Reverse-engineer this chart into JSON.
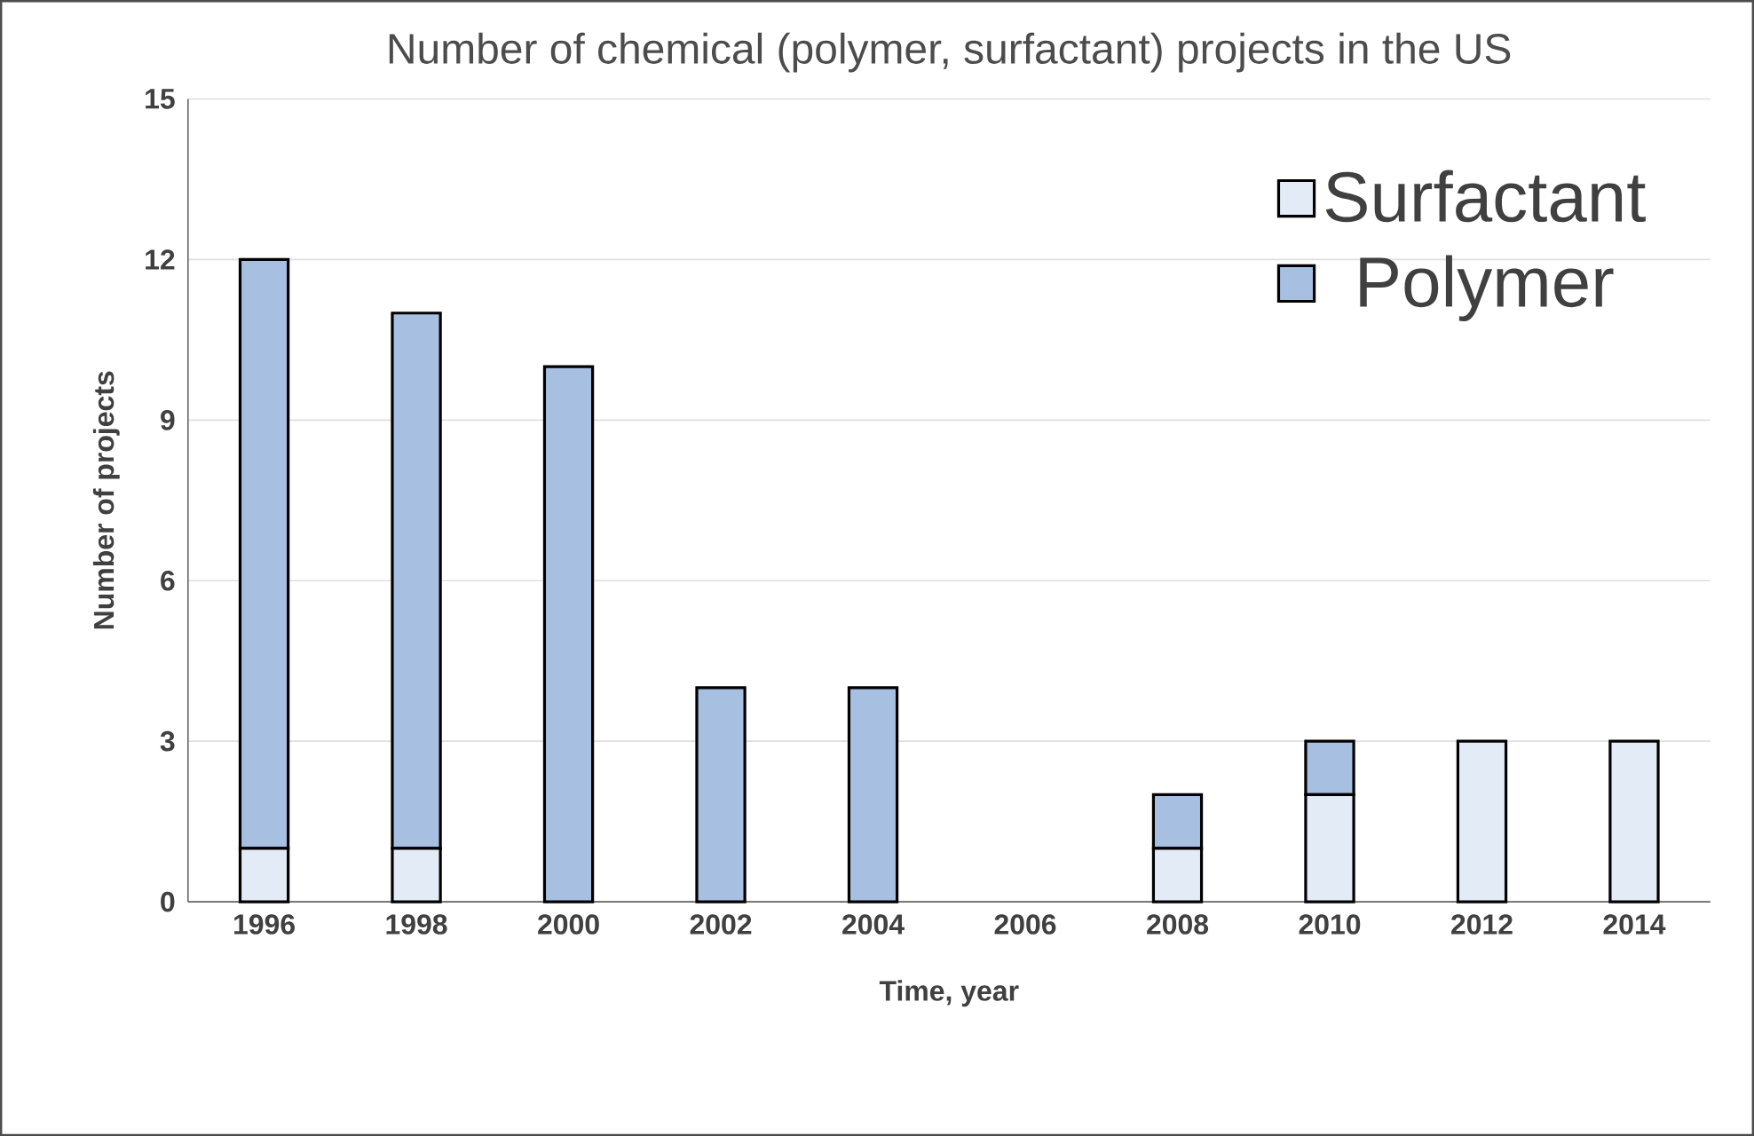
{
  "chart_data": {
    "type": "bar",
    "title": "Number of chemical (polymer, surfactant) projects in the US",
    "xlabel": "Time, year",
    "ylabel": "Number of projects",
    "categories": [
      "1996",
      "1998",
      "2000",
      "2002",
      "2004",
      "2006",
      "2008",
      "2010",
      "2012",
      "2014"
    ],
    "series": [
      {
        "name": "Surfactant",
        "color": "#e3ebf6",
        "values": [
          1,
          1,
          0,
          0,
          0,
          0,
          1,
          2,
          3,
          3
        ]
      },
      {
        "name": "Polymer",
        "color": "#a7c0e2",
        "values": [
          11,
          10,
          10,
          4,
          4,
          0,
          1,
          1,
          0,
          0
        ]
      }
    ],
    "stacked": true,
    "ylim": [
      0,
      15
    ],
    "yticks": [
      0,
      3,
      6,
      9,
      12,
      15
    ],
    "grid": "y",
    "legend": "top right"
  }
}
